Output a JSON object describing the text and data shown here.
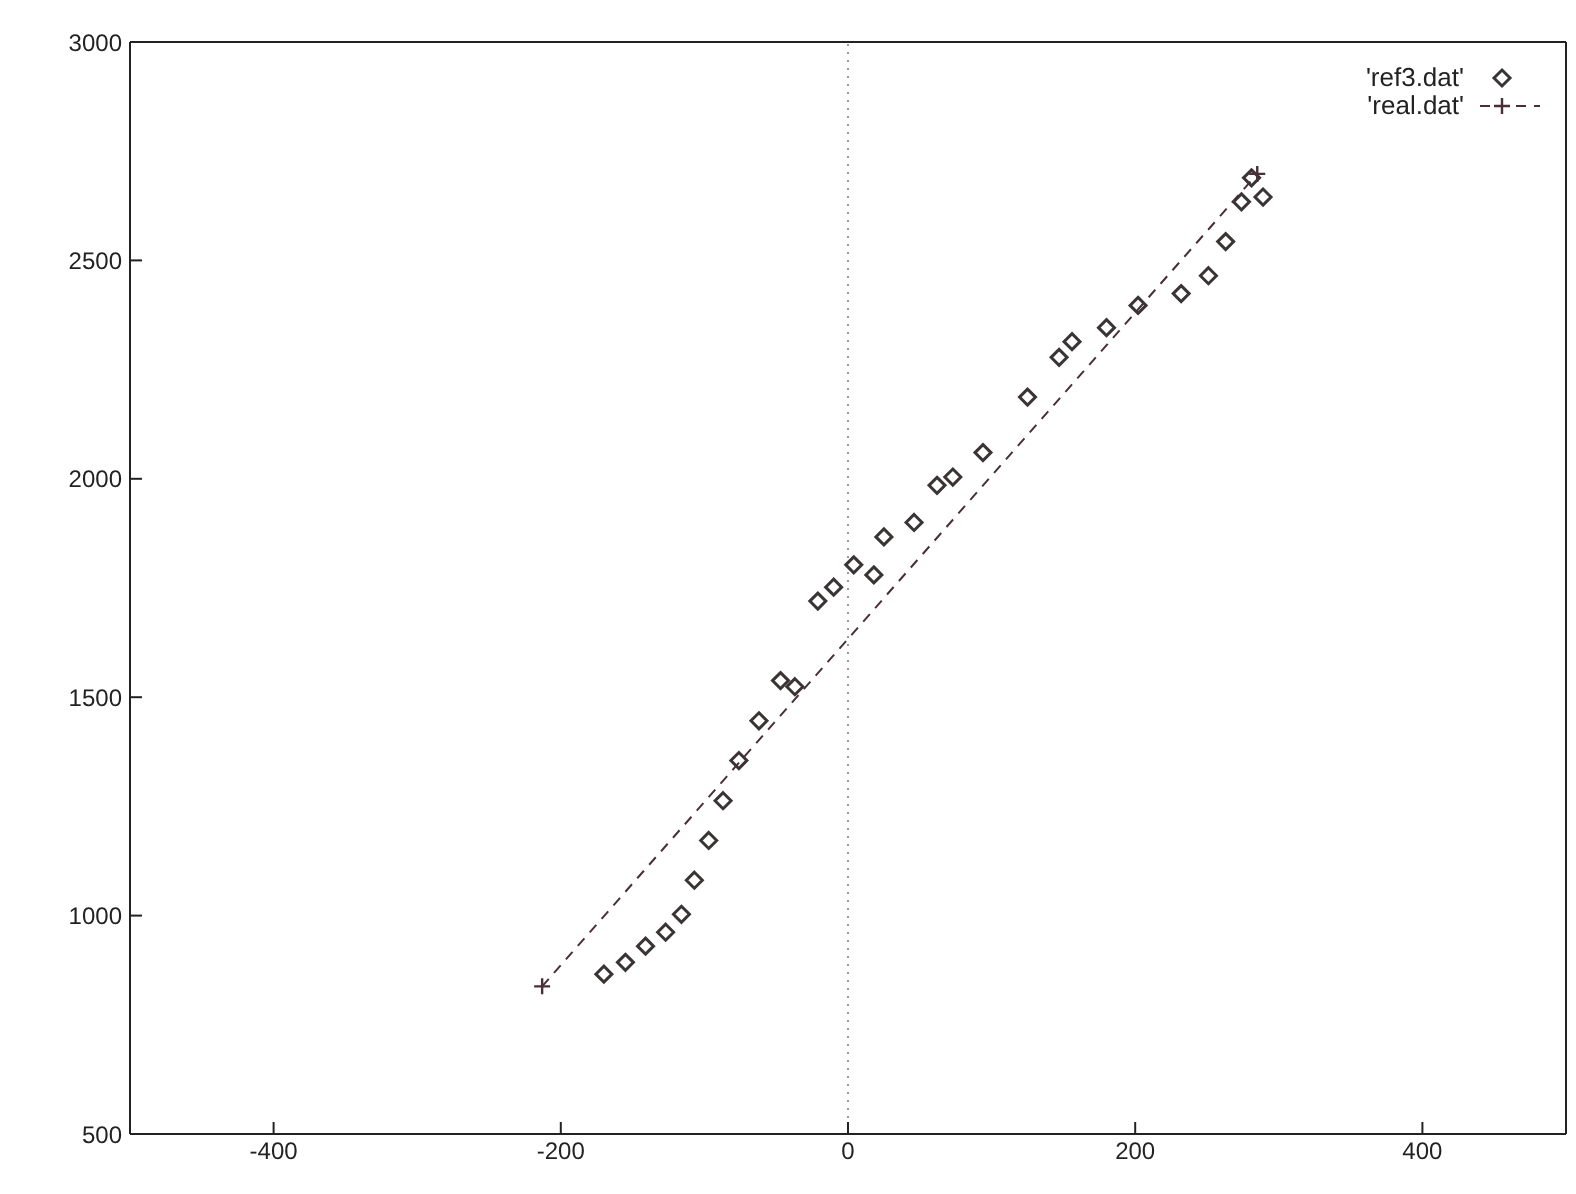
{
  "chart_data": {
    "type": "scatter",
    "xlim": [
      -500,
      500
    ],
    "xticks": [
      -400,
      -200,
      0,
      200,
      400
    ],
    "ylim": [
      500,
      3000
    ],
    "yticks": [
      500,
      1000,
      1500,
      2000,
      2500,
      3000
    ],
    "legend": "top right",
    "ref_lines": [
      {
        "axis": "x",
        "value": 0,
        "line_style": "dotted",
        "color": "#999999"
      }
    ],
    "series": [
      {
        "name": "'ref3.dat'",
        "marker": "diamond",
        "color": "#3a3434",
        "x": [
          -170,
          -155,
          -141,
          -127,
          -116,
          -107,
          -97,
          -87,
          -76,
          -62,
          -47,
          -37,
          -21,
          -10,
          4,
          18,
          25,
          46,
          62,
          73,
          94,
          125,
          147,
          156,
          180,
          202,
          232,
          251,
          263,
          274,
          281,
          289
        ],
        "values": [
          866,
          893,
          930,
          962,
          1003,
          1081,
          1172,
          1263,
          1355,
          1446,
          1538,
          1524,
          1720,
          1752,
          1803,
          1780,
          1867,
          1900,
          1985,
          2004,
          2060,
          2187,
          2278,
          2314,
          2346,
          2397,
          2424,
          2465,
          2543,
          2634,
          2689,
          2645
        ]
      },
      {
        "name": "'real.dat'",
        "type": "line",
        "marker": "cross",
        "line_style": "dashed",
        "color": "#4a2e3a",
        "x": [
          -213,
          285
        ],
        "values": [
          838,
          2698
        ]
      }
    ]
  }
}
